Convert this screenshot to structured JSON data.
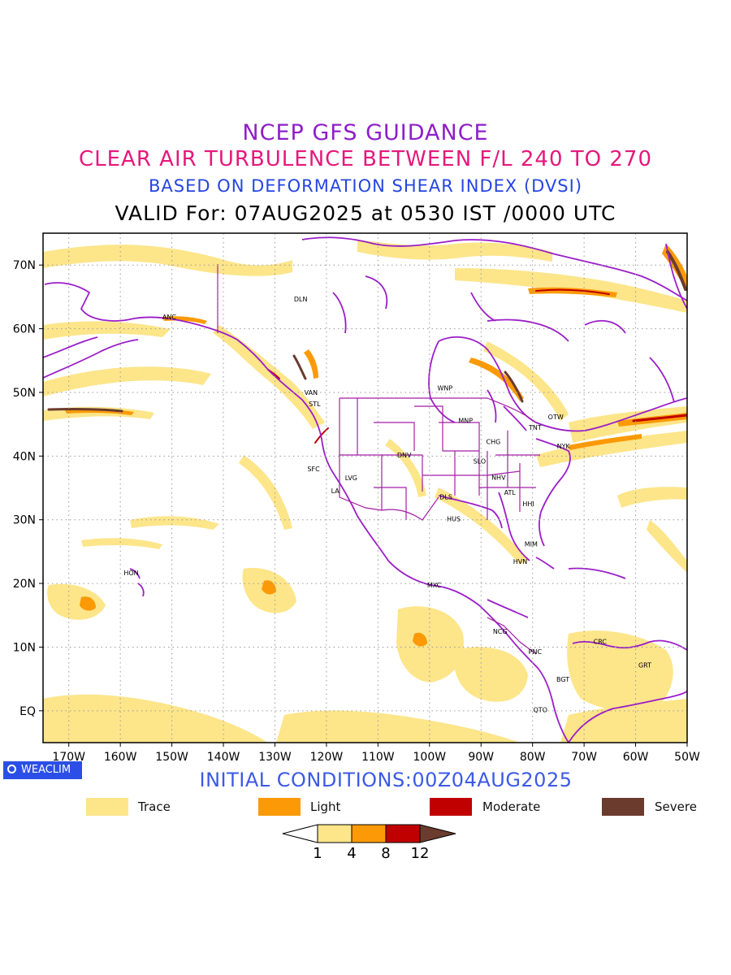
{
  "header": {
    "line1": "NCEP GFS GUIDANCE",
    "line2": "CLEAR AIR TURBULENCE BETWEEN F/L 240 TO 270",
    "line3": "BASED ON DEFORMATION SHEAR INDEX (DVSI)",
    "line4": "VALID For: 07AUG2025 at 0530 IST /0000 UTC"
  },
  "map": {
    "lon_labels": [
      "170W",
      "160W",
      "150W",
      "140W",
      "130W",
      "120W",
      "110W",
      "100W",
      "90W",
      "80W",
      "70W",
      "60W",
      "50W"
    ],
    "lat_labels": [
      "70N",
      "60N",
      "50N",
      "40N",
      "30N",
      "20N",
      "10N",
      "EQ"
    ],
    "lon_range": [
      -175,
      -50
    ],
    "lat_range": [
      -5,
      75
    ],
    "grid": "dotted",
    "stations": [
      {
        "id": "DLN",
        "lon": -125,
        "lat": 64.3
      },
      {
        "id": "ANC",
        "lon": -150.5,
        "lat": 61.5
      },
      {
        "id": "VAN",
        "lon": -123,
        "lat": 49.6
      },
      {
        "id": "STL",
        "lon": -122.3,
        "lat": 47.8
      },
      {
        "id": "WNP",
        "lon": -97,
        "lat": 50.3
      },
      {
        "id": "MNP",
        "lon": -93,
        "lat": 45.2
      },
      {
        "id": "OTW",
        "lon": -75.5,
        "lat": 45.8
      },
      {
        "id": "TNT",
        "lon": -79.5,
        "lat": 44.1
      },
      {
        "id": "CHG",
        "lon": -87.6,
        "lat": 41.9
      },
      {
        "id": "NYK",
        "lon": -74,
        "lat": 41.2
      },
      {
        "id": "DNV",
        "lon": -104.9,
        "lat": 39.8
      },
      {
        "id": "SLO",
        "lon": -90.3,
        "lat": 38.8
      },
      {
        "id": "SFC",
        "lon": -122.5,
        "lat": 37.6
      },
      {
        "id": "LVG",
        "lon": -115.2,
        "lat": 36.2
      },
      {
        "id": "NHV",
        "lon": -86.6,
        "lat": 36.3
      },
      {
        "id": "LA",
        "lon": -118.3,
        "lat": 34.2
      },
      {
        "id": "ATL",
        "lon": -84.4,
        "lat": 33.9
      },
      {
        "id": "DLS",
        "lon": -96.8,
        "lat": 33.2
      },
      {
        "id": "HHI",
        "lon": -80.8,
        "lat": 32.1
      },
      {
        "id": "HUS",
        "lon": -95.3,
        "lat": 29.8
      },
      {
        "id": "MIM",
        "lon": -80.3,
        "lat": 25.8
      },
      {
        "id": "HON",
        "lon": -157.9,
        "lat": 21.3
      },
      {
        "id": "HVN",
        "lon": -82.4,
        "lat": 23.1
      },
      {
        "id": "MXC",
        "lon": -99.1,
        "lat": 19.4
      },
      {
        "id": "NCG",
        "lon": -86.3,
        "lat": 12.1
      },
      {
        "id": "CRC",
        "lon": -66.9,
        "lat": 10.5
      },
      {
        "id": "PNC",
        "lon": -79.5,
        "lat": 8.9
      },
      {
        "id": "GRT",
        "lon": -58.2,
        "lat": 6.8
      },
      {
        "id": "BGT",
        "lon": -74.1,
        "lat": 4.6
      },
      {
        "id": "QTO",
        "lon": -78.5,
        "lat": -0.2
      }
    ]
  },
  "branding": {
    "logo_text": "WEACLIM"
  },
  "footer": {
    "initial_conditions": "INITIAL CONDITIONS:00Z04AUG2025"
  },
  "legend": {
    "items": [
      {
        "label": "Trace",
        "color": "#fde58a"
      },
      {
        "label": "Light",
        "color": "#fb9a06"
      },
      {
        "label": "Moderate",
        "color": "#c00000"
      },
      {
        "label": "Severe",
        "color": "#6b3b2e"
      }
    ],
    "colorbar_ticks": [
      "1",
      "4",
      "8",
      "12"
    ]
  },
  "colors": {
    "trace": "#fde58a",
    "light": "#fb9a06",
    "moderate": "#c00000",
    "severe": "#6b3b2e",
    "coast": "#9b1ec8",
    "border": "#a51ea8"
  }
}
